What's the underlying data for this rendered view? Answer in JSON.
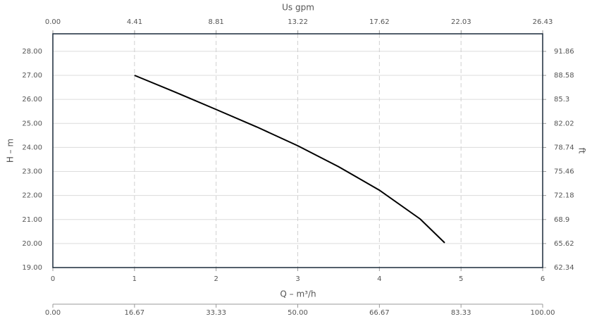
{
  "chart_data": {
    "type": "line",
    "x_label": "Q – m³/h",
    "y_label": "H – m",
    "xlim": [
      0,
      6
    ],
    "xticks": [
      0,
      1,
      2,
      3,
      4,
      5,
      6
    ],
    "ylim": [
      19,
      28.73
    ],
    "yticks": [
      {
        "value": 19,
        "label": "19.00"
      },
      {
        "value": 20,
        "label": "20.00"
      },
      {
        "value": 21,
        "label": "21.00"
      },
      {
        "value": 22,
        "label": "22.00"
      },
      {
        "value": 23,
        "label": "23.00"
      },
      {
        "value": 24,
        "label": "24.00"
      },
      {
        "value": 25,
        "label": "25.00"
      },
      {
        "value": 26,
        "label": "26.00"
      },
      {
        "value": 27,
        "label": "27.00"
      },
      {
        "value": 28,
        "label": "28.00"
      }
    ],
    "grid": true,
    "series": [
      {
        "color": "#000000",
        "x": [
          1,
          1.5,
          2,
          2.5,
          3,
          3.5,
          4,
          4.5,
          4.8
        ],
        "values": [
          27.0,
          26.3,
          25.58,
          24.85,
          24.07,
          23.2,
          22.22,
          21.02,
          20.03
        ]
      }
    ],
    "top_axis": {
      "label": "Us gpm",
      "lim": [
        0,
        26.43
      ],
      "ticks": [
        {
          "value": 0,
          "label": "0.00"
        },
        4.41,
        8.81,
        13.22,
        17.62,
        22.03,
        26.43
      ]
    },
    "right_axis": {
      "label": "ft",
      "lim": [
        62.34,
        94.26
      ],
      "ticks": [
        62.34,
        65.62,
        68.9,
        72.18,
        75.46,
        78.74,
        82.02,
        85.3,
        88.58,
        91.86
      ]
    },
    "bottom2_axis": {
      "lim": [
        0,
        100
      ],
      "ticks": [
        {
          "value": 0,
          "label": "0.00"
        },
        16.67,
        33.33,
        {
          "value": 50,
          "label": "50.00"
        },
        66.67,
        83.33,
        {
          "value": 100,
          "label": "100.00"
        }
      ]
    }
  }
}
